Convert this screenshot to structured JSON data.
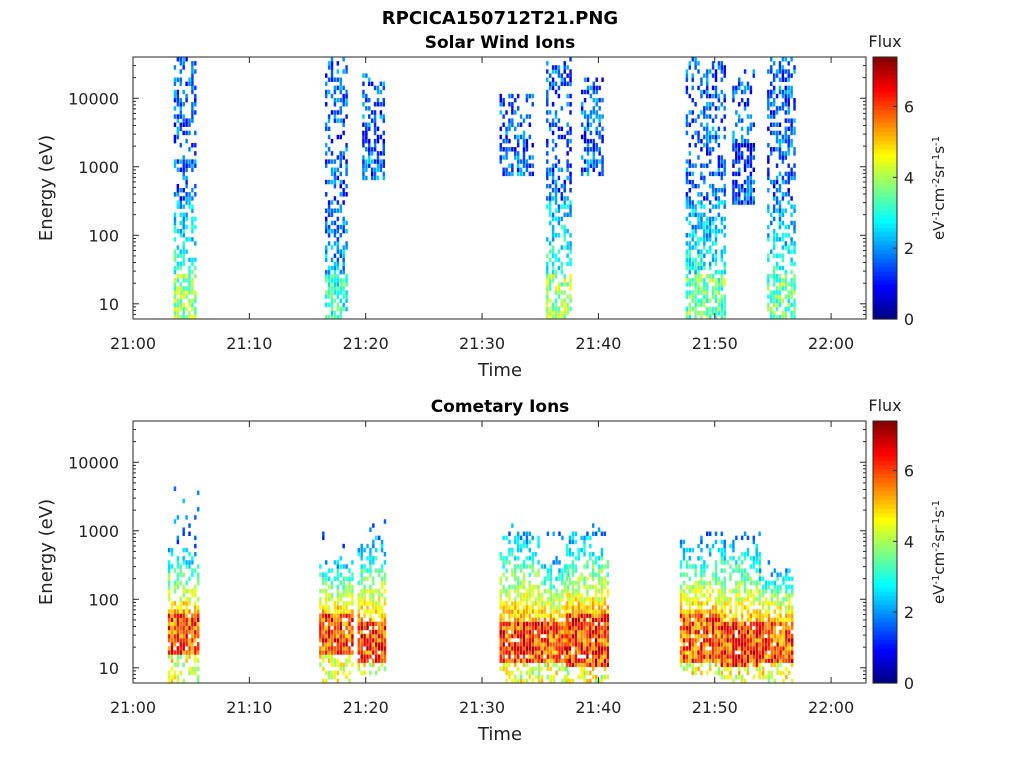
{
  "figure": {
    "title": "RPCICA150712T21.PNG"
  },
  "chart_data": [
    {
      "type": "heatmap",
      "title": "Solar Wind Ions",
      "xlabel": "Time",
      "ylabel": "Energy (eV)",
      "x_ticks": [
        "21:00",
        "21:10",
        "21:20",
        "21:30",
        "21:40",
        "21:50",
        "22:00"
      ],
      "xlim": [
        "21:00",
        "22:03"
      ],
      "y_scale": "log",
      "ylim": [
        6,
        40000
      ],
      "y_ticks": [
        10,
        100,
        1000,
        10000
      ],
      "y_tick_labels": [
        "10",
        "100",
        "1000",
        "10000"
      ],
      "colorbar": {
        "label": "Flux",
        "unit": "eV^-1 cm^-2 sr^-1 s^-1",
        "range": [
          0,
          7.4
        ],
        "ticks": [
          0,
          2,
          4,
          6
        ],
        "colormap": "jet"
      },
      "bursts": [
        {
          "t_start": "21:03.5",
          "t_end": "21:05.5",
          "e_min": 6,
          "e_max": 38000,
          "peak_flux": 4.8,
          "flux_core": 3.6
        },
        {
          "t_start": "21:16.5",
          "t_end": "21:18.5",
          "e_min": 6,
          "e_max": 38000,
          "peak_flux": 4.0,
          "flux_core": 2.8
        },
        {
          "t_start": "21:19.7",
          "t_end": "21:21.5",
          "e_min": 650,
          "e_max": 22000,
          "peak_flux": 2.6,
          "flux_core": 2.4
        },
        {
          "t_start": "21:31.5",
          "t_end": "21:34.5",
          "e_min": 700,
          "e_max": 12000,
          "peak_flux": 2.6,
          "flux_core": 2.4
        },
        {
          "t_start": "21:35.5",
          "t_end": "21:37.6",
          "e_min": 6,
          "e_max": 38000,
          "peak_flux": 4.8,
          "flux_core": 3.6
        },
        {
          "t_start": "21:38.5",
          "t_end": "21:40.3",
          "e_min": 700,
          "e_max": 20000,
          "peak_flux": 2.6,
          "flux_core": 2.4
        },
        {
          "t_start": "21:47.5",
          "t_end": "21:50.8",
          "e_min": 6,
          "e_max": 38000,
          "peak_flux": 4.4,
          "flux_core": 3.4
        },
        {
          "t_start": "21:51.5",
          "t_end": "21:53.5",
          "e_min": 300,
          "e_max": 25000,
          "peak_flux": 2.4,
          "flux_core": 2.2
        },
        {
          "t_start": "21:54.5",
          "t_end": "21:57.0",
          "e_min": 6,
          "e_max": 38000,
          "peak_flux": 4.4,
          "flux_core": 3.4
        }
      ]
    },
    {
      "type": "heatmap",
      "title": "Cometary Ions",
      "xlabel": "Time",
      "ylabel": "Energy (eV)",
      "x_ticks": [
        "21:00",
        "21:10",
        "21:20",
        "21:30",
        "21:40",
        "21:50",
        "22:00"
      ],
      "xlim": [
        "21:00",
        "22:03"
      ],
      "y_scale": "log",
      "ylim": [
        6,
        40000
      ],
      "y_ticks": [
        10,
        100,
        1000,
        10000
      ],
      "y_tick_labels": [
        "10",
        "100",
        "1000",
        "10000"
      ],
      "colorbar": {
        "label": "Flux",
        "unit": "eV^-1 cm^-2 sr^-1 s^-1",
        "range": [
          0,
          7.4
        ],
        "ticks": [
          0,
          2,
          4,
          6
        ],
        "colormap": "jet"
      },
      "bursts": [
        {
          "t_start": "21:03.0",
          "t_end": "21:05.6",
          "e_min": 6,
          "e_max": 4500,
          "peak_flux": 7.0,
          "core_e": [
            15,
            60
          ],
          "tail_e": 600
        },
        {
          "t_start": "21:16.0",
          "t_end": "21:19.0",
          "e_min": 6,
          "e_max": 1000,
          "peak_flux": 7.0,
          "core_e": [
            15,
            60
          ],
          "tail_e": 400
        },
        {
          "t_start": "21:19.3",
          "t_end": "21:21.7",
          "e_min": 8,
          "e_max": 1800,
          "peak_flux": 7.2,
          "core_e": [
            12,
            50
          ],
          "tail_e": 800
        },
        {
          "t_start": "21:31.5",
          "t_end": "21:35.0",
          "e_min": 6,
          "e_max": 1500,
          "peak_flux": 7.2,
          "core_e": [
            12,
            50
          ],
          "tail_e": 1000
        },
        {
          "t_start": "21:34.8",
          "t_end": "21:37.5",
          "e_min": 6,
          "e_max": 1000,
          "peak_flux": 7.0,
          "core_e": [
            12,
            50
          ],
          "tail_e": 400
        },
        {
          "t_start": "21:37.2",
          "t_end": "21:40.8",
          "e_min": 6,
          "e_max": 1300,
          "peak_flux": 7.2,
          "core_e": [
            10,
            60
          ],
          "tail_e": 1000
        },
        {
          "t_start": "21:47.0",
          "t_end": "21:50.8",
          "e_min": 8,
          "e_max": 1300,
          "peak_flux": 7.0,
          "core_e": [
            12,
            60
          ],
          "tail_e": 700
        },
        {
          "t_start": "21:50.5",
          "t_end": "21:54.0",
          "e_min": 6,
          "e_max": 1300,
          "peak_flux": 7.2,
          "core_e": [
            10,
            50
          ],
          "tail_e": 800
        },
        {
          "t_start": "21:53.8",
          "t_end": "21:56.8",
          "e_min": 6,
          "e_max": 500,
          "peak_flux": 7.0,
          "core_e": [
            12,
            50
          ],
          "tail_e": 300
        }
      ]
    }
  ]
}
